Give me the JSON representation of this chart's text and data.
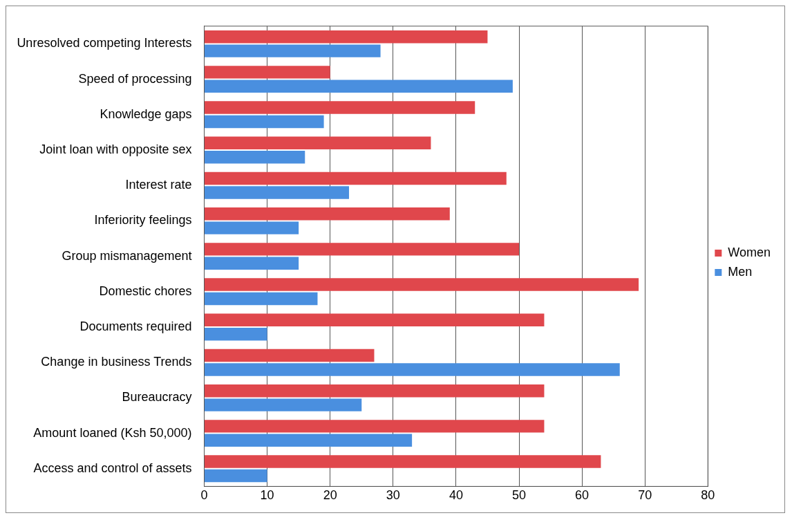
{
  "chart_data": {
    "type": "bar",
    "orientation": "horizontal",
    "categories": [
      "Unresolved competing Interests",
      "Speed of processing",
      "Knowledge gaps",
      "Joint loan with opposite sex",
      "Interest rate",
      "Inferiority feelings",
      "Group mismanagement",
      "Domestic chores",
      "Documents required",
      "Change in business Trends",
      "Bureaucracy",
      "Amount loaned (Ksh 50,000)",
      "Access and control of assets"
    ],
    "series": [
      {
        "name": "Women",
        "color": "#e0474c",
        "values": [
          45,
          20,
          43,
          36,
          48,
          39,
          50,
          69,
          54,
          27,
          54,
          54,
          63
        ]
      },
      {
        "name": "Men",
        "color": "#4a8fdf",
        "values": [
          28,
          49,
          19,
          16,
          23,
          15,
          15,
          18,
          10,
          66,
          25,
          33,
          10
        ]
      }
    ],
    "xlim": [
      0,
      80
    ],
    "xticks": [
      0,
      10,
      20,
      30,
      40,
      50,
      60,
      70,
      80
    ],
    "grid": "x",
    "legend": "right"
  }
}
